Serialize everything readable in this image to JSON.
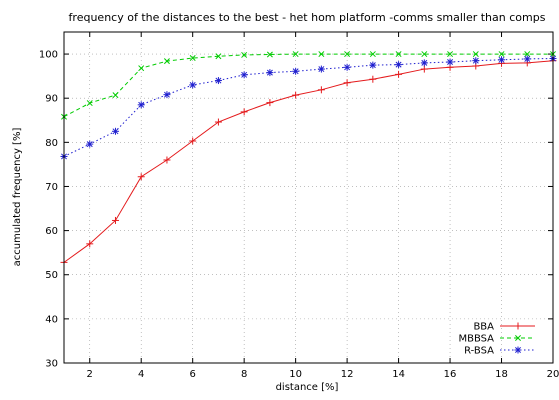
{
  "chart_data": {
    "type": "line",
    "title": "frequency of the distances to the best - het hom platform -comms smaller than comps",
    "xlabel": "distance [%]",
    "ylabel": "accumulated frequency [%]",
    "xlim": [
      1,
      20
    ],
    "ylim": [
      30,
      105
    ],
    "xticks": [
      2,
      4,
      6,
      8,
      10,
      12,
      14,
      16,
      18,
      20
    ],
    "yticks": [
      30,
      40,
      50,
      60,
      70,
      80,
      90,
      100
    ],
    "grid": true,
    "legend_position": "bottom-right",
    "x": [
      1,
      2,
      3,
      4,
      5,
      6,
      7,
      8,
      9,
      10,
      11,
      12,
      13,
      14,
      15,
      16,
      17,
      18,
      19,
      20
    ],
    "series": [
      {
        "name": "BBA",
        "color": "#e41a1c",
        "marker": "plus",
        "dash": "solid",
        "values": [
          52.8,
          57.0,
          62.3,
          72.2,
          76.0,
          80.3,
          84.6,
          86.9,
          89.0,
          90.7,
          91.9,
          93.5,
          94.3,
          95.4,
          96.6,
          97.0,
          97.3,
          97.9,
          98.0,
          98.5
        ]
      },
      {
        "name": "MBBSA",
        "color": "#00cc00",
        "marker": "cross",
        "dash": "dashed",
        "values": [
          85.8,
          88.9,
          90.7,
          96.8,
          98.4,
          99.1,
          99.5,
          99.8,
          99.9,
          100,
          100,
          100,
          100,
          100,
          100,
          100,
          100,
          100,
          100,
          100
        ]
      },
      {
        "name": "R-BSA",
        "color": "#1f1fcf",
        "marker": "star",
        "dash": "dotted",
        "values": [
          76.8,
          79.6,
          82.5,
          88.5,
          90.8,
          93.0,
          94.0,
          95.3,
          95.8,
          96.1,
          96.6,
          97.0,
          97.5,
          97.6,
          98.0,
          98.2,
          98.5,
          98.7,
          98.9,
          99.0
        ]
      }
    ]
  }
}
